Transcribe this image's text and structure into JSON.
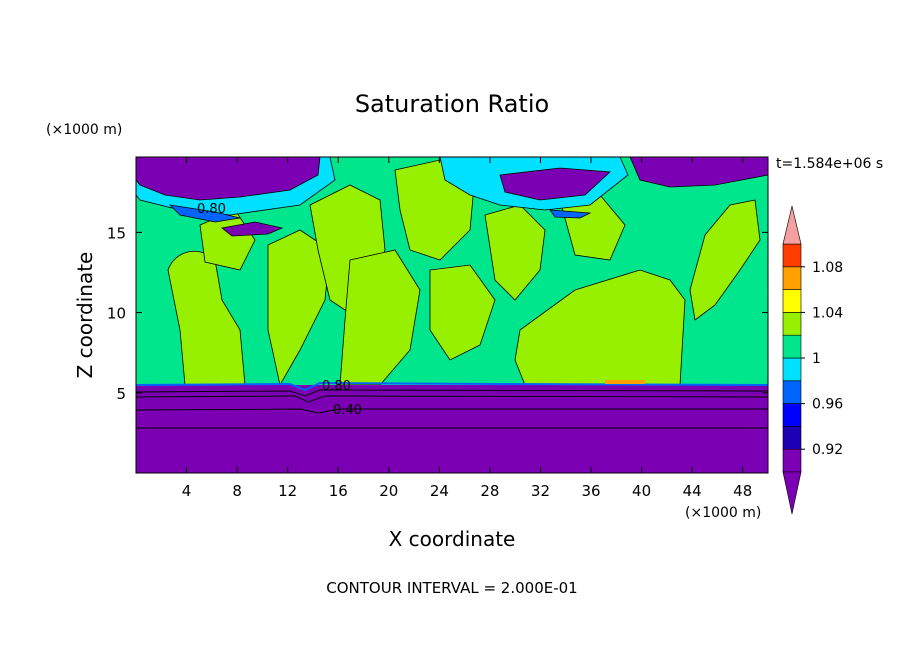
{
  "chart_data": {
    "type": "contour",
    "title": "Saturation Ratio",
    "xlabel": "X coordinate",
    "ylabel": "Z coordinate",
    "x_unit": "(×1000 m)",
    "y_unit": "(×1000 m)",
    "time_label": "t=1.584e+06 s",
    "footer": "CONTOUR INTERVAL = 2.000E-01",
    "xlim": [
      0,
      50
    ],
    "ylim": [
      0,
      19.7
    ],
    "x_ticks": [
      4,
      8,
      12,
      16,
      20,
      24,
      28,
      32,
      36,
      40,
      44,
      48
    ],
    "y_ticks": [
      5,
      10,
      15
    ],
    "colorbar": {
      "levels": [
        0.9,
        0.92,
        0.94,
        0.96,
        0.98,
        1,
        1.02,
        1.04,
        1.06,
        1.08,
        1.1
      ],
      "labels": [
        "0.92",
        "0.96",
        "1",
        "1.04",
        "1.08"
      ],
      "label_levels": [
        0.92,
        0.96,
        1,
        1.04,
        1.08
      ],
      "colors": [
        "#7b00b4",
        "#1e00b4",
        "#0000ff",
        "#0064ff",
        "#00e0ff",
        "#00e68c",
        "#96f000",
        "#ffff00",
        "#ffa000",
        "#ff3c00",
        "#f4a0a0"
      ],
      "under_color": "#7b00b4",
      "over_color": "#f4a0a0"
    },
    "contour_labels": [
      "0.80",
      "0.80",
      "0.40"
    ],
    "colors": {
      "low_layer": "#7b00b4",
      "background": "#00e68c",
      "patches": "#96f000",
      "cyan": "#00e0ff",
      "blue": "#0064ff"
    }
  }
}
